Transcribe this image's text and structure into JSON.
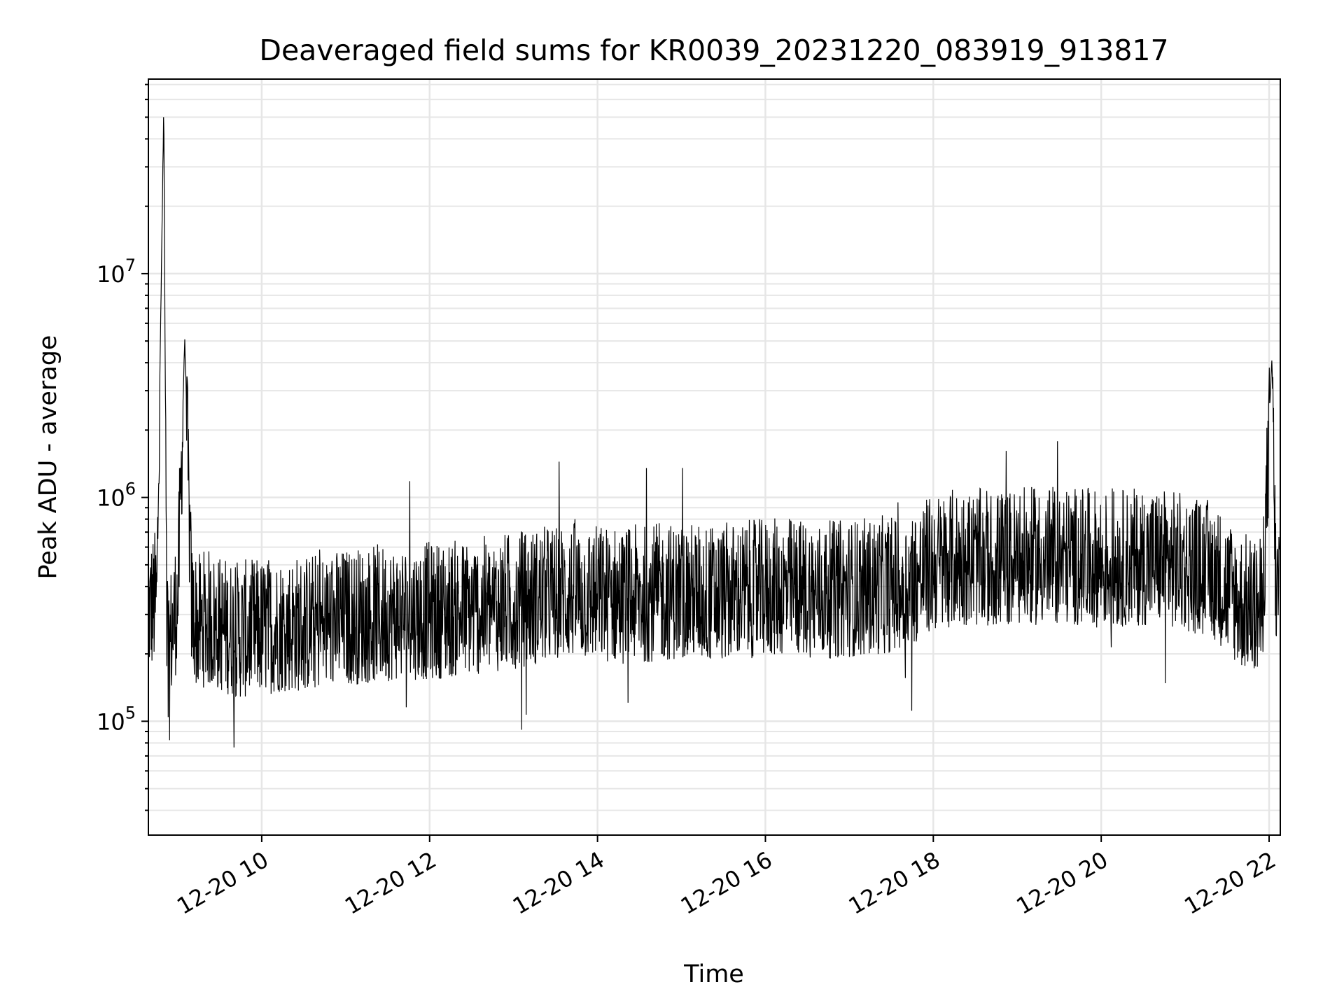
{
  "chart_data": {
    "type": "line",
    "title": "Deaveraged field sums for KR0039_20231220_083919_913817",
    "xlabel": "Time",
    "ylabel": "Peak ADU - average",
    "y_scale": "log",
    "ylim": [
      31000,
      74000000
    ],
    "xlim": [
      "2023-12-20 08:39",
      "2023-12-20 22:08"
    ],
    "x_tick_labels": [
      "12-20 10",
      "12-20 12",
      "12-20 14",
      "12-20 16",
      "12-20 18",
      "12-20 20",
      "12-20 22"
    ],
    "y_tick_labels": [
      {
        "base": "10",
        "exp": "5",
        "value": 100000
      },
      {
        "base": "10",
        "exp": "6",
        "value": 1000000
      },
      {
        "base": "10",
        "exp": "7",
        "value": 10000000
      }
    ],
    "grid": true,
    "line_color": "#000000",
    "grid_color": "#e6e6e6",
    "series": [
      {
        "x": [
          "2023-12-20 08:39",
          "2023-12-20 08:45",
          "2023-12-20 08:50",
          "2023-12-20 08:52",
          "2023-12-20 08:54",
          "2023-12-20 09:00",
          "2023-12-20 09:05",
          "2023-12-20 09:10",
          "2023-12-20 09:15",
          "2023-12-20 09:20",
          "2023-12-20 09:30",
          "2023-12-20 09:45",
          "2023-12-20 10:00",
          "2023-12-20 10:15",
          "2023-12-20 10:30",
          "2023-12-20 10:45",
          "2023-12-20 11:00",
          "2023-12-20 11:20",
          "2023-12-20 11:40",
          "2023-12-20 12:00",
          "2023-12-20 12:20",
          "2023-12-20 12:40",
          "2023-12-20 13:00",
          "2023-12-20 13:20",
          "2023-12-20 13:40",
          "2023-12-20 14:00",
          "2023-12-20 14:20",
          "2023-12-20 14:40",
          "2023-12-20 15:00",
          "2023-12-20 15:20",
          "2023-12-20 15:40",
          "2023-12-20 16:00",
          "2023-12-20 16:20",
          "2023-12-20 16:40",
          "2023-12-20 17:00",
          "2023-12-20 17:20",
          "2023-12-20 17:40",
          "2023-12-20 18:00",
          "2023-12-20 18:20",
          "2023-12-20 18:40",
          "2023-12-20 19:00",
          "2023-12-20 19:20",
          "2023-12-20 19:40",
          "2023-12-20 20:00",
          "2023-12-20 20:20",
          "2023-12-20 20:40",
          "2023-12-20 21:00",
          "2023-12-20 21:20",
          "2023-12-20 21:40",
          "2023-12-20 21:55",
          "2023-12-20 22:02",
          "2023-12-20 22:05",
          "2023-12-20 22:08"
        ],
        "values": [
          350000,
          400000,
          56000000,
          300000,
          250000,
          400000,
          5000000,
          350000,
          300000,
          320000,
          300000,
          280000,
          290000,
          300000,
          300000,
          310000,
          320000,
          330000,
          340000,
          340000,
          350000,
          360000,
          380000,
          400000,
          420000,
          410000,
          400000,
          410000,
          420000,
          410000,
          420000,
          430000,
          440000,
          420000,
          430000,
          440000,
          460000,
          560000,
          600000,
          580000,
          590000,
          600000,
          600000,
          580000,
          590000,
          600000,
          560000,
          520000,
          380000,
          350000,
          4300000,
          400000,
          500000
        ],
        "noise_band": {
          "low_factor": 0.45,
          "high_factor": 2.2
        }
      }
    ]
  }
}
